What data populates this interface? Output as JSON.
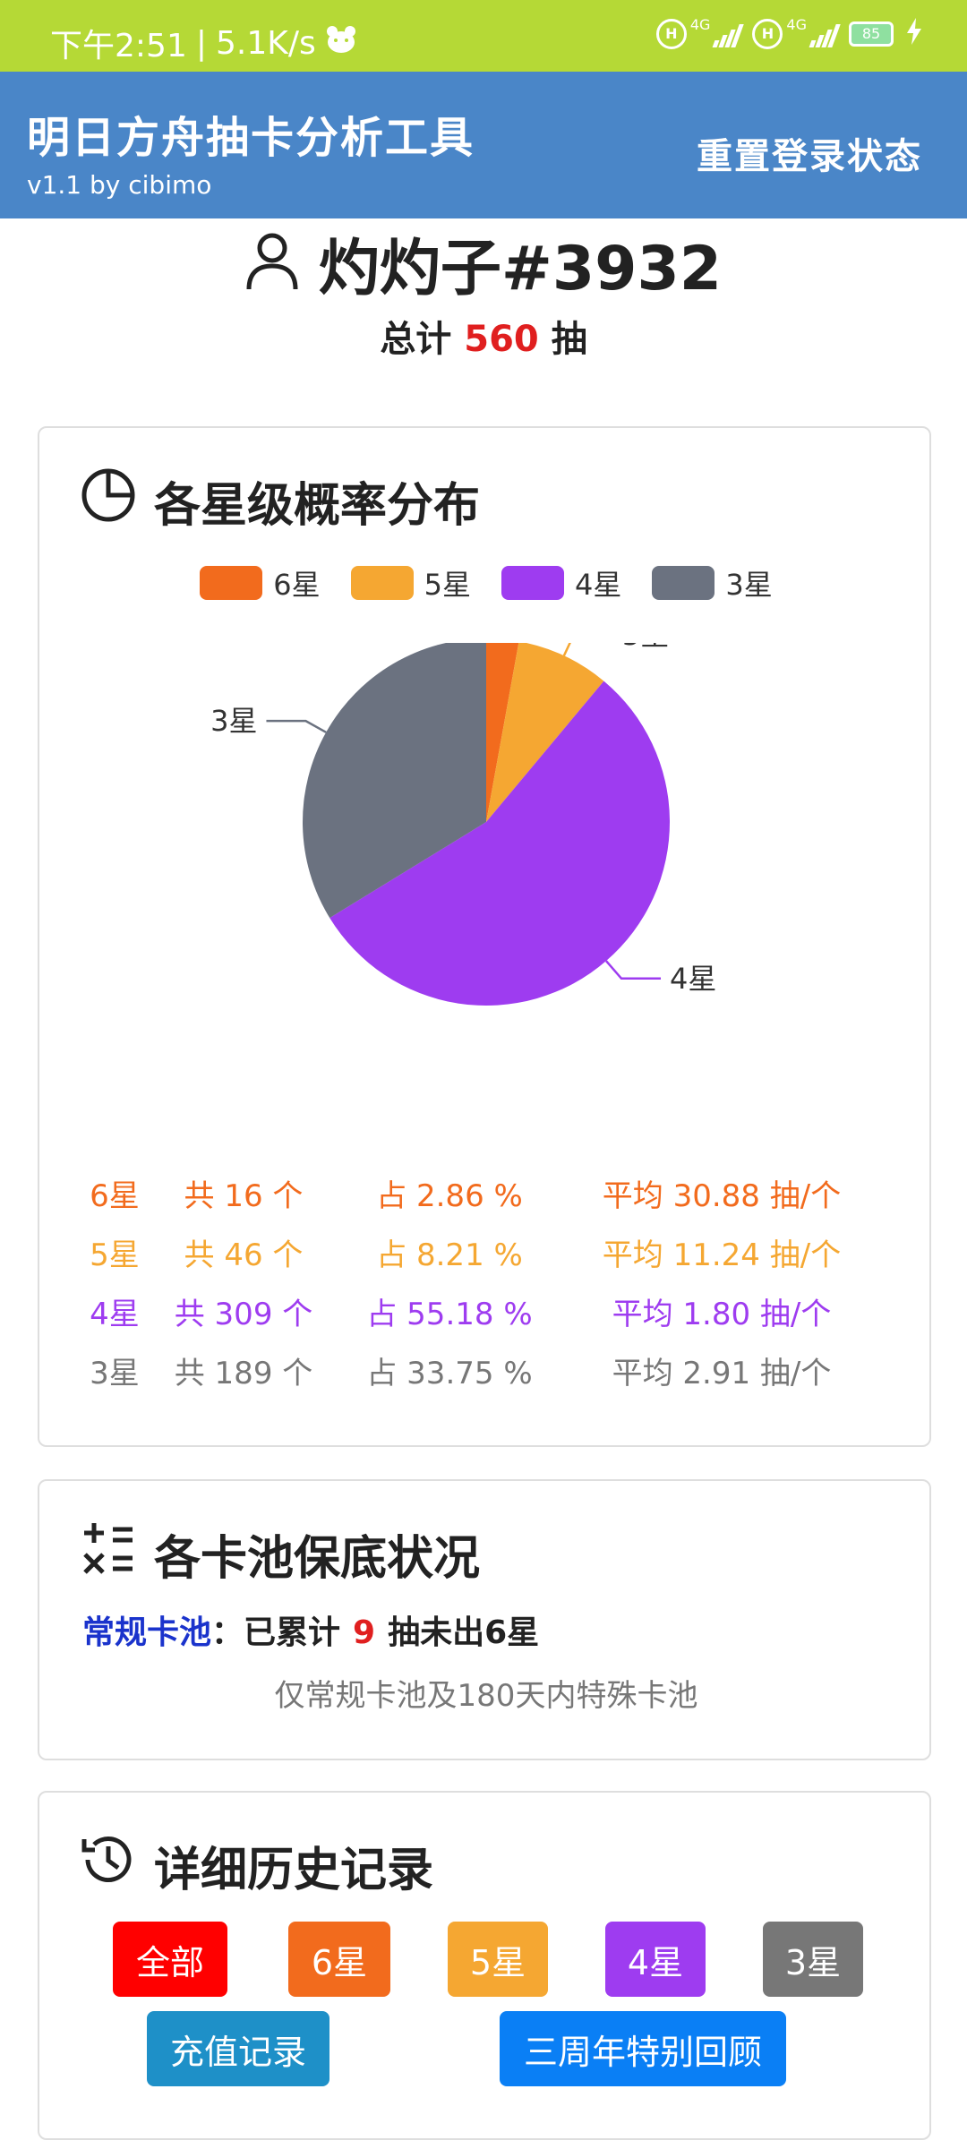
{
  "status_bar": {
    "time": "下午2:51",
    "speed": "5.1K/s",
    "net1": "4G",
    "net2": "4G",
    "battery": "85"
  },
  "app_bar": {
    "title": "明日方舟抽卡分析工具",
    "subtitle": "v1.1 by cibimo",
    "reset_label": "重置登录状态"
  },
  "user": {
    "name": "灼灼子#3932",
    "total_prefix": "总计",
    "total_count": "560",
    "total_suffix": "抽"
  },
  "distribution": {
    "title": "各星级概率分布",
    "stats": [
      {
        "label": "6星",
        "count": "共 16 个",
        "pct": "占 2.86 %",
        "avg": "平均 30.88 抽/个",
        "color": "#f26b1d"
      },
      {
        "label": "5星",
        "count": "共 46 个",
        "pct": "占 8.21 %",
        "avg": "平均 11.24 抽/个",
        "color": "#f5a732"
      },
      {
        "label": "4星",
        "count": "共 309 个",
        "pct": "占 55.18 %",
        "avg": "平均 1.80 抽/个",
        "color": "#9e3cf0"
      },
      {
        "label": "3星",
        "count": "共 189 个",
        "pct": "占 33.75 %",
        "avg": "平均 2.91 抽/个",
        "color": "#777777"
      }
    ]
  },
  "chart_data": {
    "type": "pie",
    "categories": [
      "6星",
      "5星",
      "4星",
      "3星"
    ],
    "values": [
      16,
      46,
      309,
      189
    ],
    "colors": [
      "#f26b1d",
      "#f5a732",
      "#9e3cf0",
      "#6b7280"
    ],
    "legend_position": "top-center"
  },
  "pool": {
    "title": "各卡池保底状况",
    "pool_name": "常规卡池",
    "text_before": "：已累计",
    "count": "9",
    "text_after": "抽未出6星",
    "note": "仅常规卡池及180天内特殊卡池"
  },
  "history": {
    "title": "详细历史记录",
    "filters": [
      {
        "label": "全部",
        "color": "#ff0000"
      },
      {
        "label": "6星",
        "color": "#f26b1d"
      },
      {
        "label": "5星",
        "color": "#f5a732"
      },
      {
        "label": "4星",
        "color": "#9e3cf0"
      },
      {
        "label": "3星",
        "color": "#777777"
      }
    ],
    "actions": [
      {
        "label": "充值记录",
        "color": "#1e90c8"
      },
      {
        "label": "三周年特别回顾",
        "color": "#0a7ff5"
      }
    ]
  }
}
